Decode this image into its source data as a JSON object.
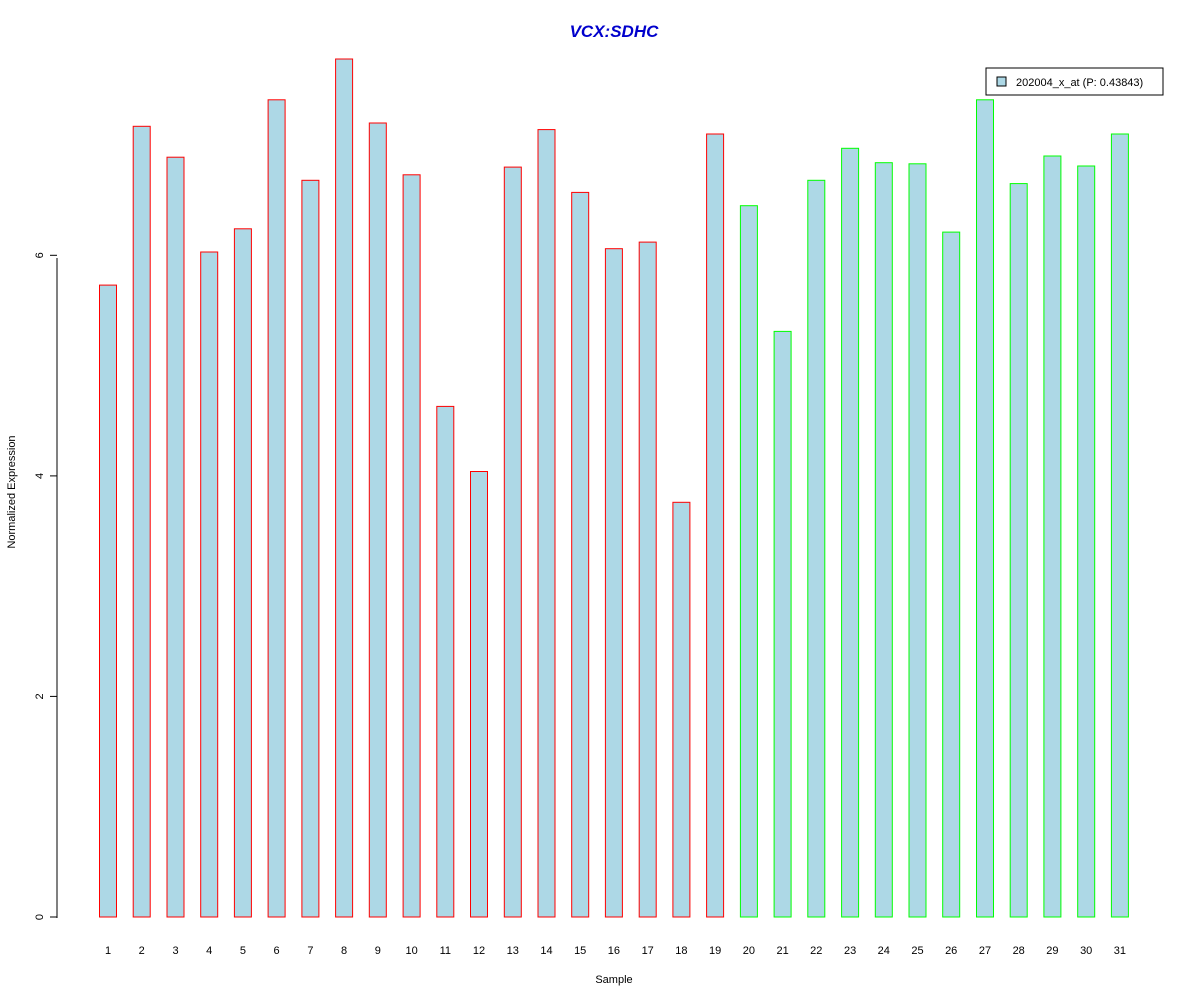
{
  "chart_data": {
    "type": "bar",
    "title": "VCX:SDHC",
    "xlabel": "Sample",
    "ylabel": "Normalized Expression",
    "categories": [
      "1",
      "2",
      "3",
      "4",
      "5",
      "6",
      "7",
      "8",
      "9",
      "10",
      "11",
      "12",
      "13",
      "14",
      "15",
      "16",
      "17",
      "18",
      "19",
      "20",
      "21",
      "22",
      "23",
      "24",
      "25",
      "26",
      "27",
      "28",
      "29",
      "30",
      "31"
    ],
    "values": [
      5.73,
      7.17,
      6.89,
      6.03,
      6.24,
      7.41,
      6.68,
      7.78,
      7.2,
      6.73,
      4.63,
      4.04,
      6.8,
      7.14,
      6.57,
      6.06,
      6.12,
      3.76,
      7.1,
      6.45,
      5.31,
      6.68,
      6.97,
      6.84,
      6.83,
      6.21,
      7.41,
      6.65,
      6.9,
      6.81,
      7.1
    ],
    "groups": [
      "red",
      "red",
      "red",
      "red",
      "red",
      "red",
      "red",
      "red",
      "red",
      "red",
      "red",
      "red",
      "red",
      "red",
      "red",
      "red",
      "red",
      "red",
      "red",
      "green",
      "green",
      "green",
      "green",
      "green",
      "green",
      "green",
      "green",
      "green",
      "green",
      "green",
      "green"
    ],
    "yticks": [
      0,
      2,
      4,
      6
    ],
    "ylim": [
      0,
      7.78
    ],
    "grid": false,
    "legend": {
      "placement": "top-right",
      "entries": [
        {
          "label": "202004_x_at (P: 0.43843)",
          "fill": "#add8e6"
        }
      ]
    },
    "colors": {
      "bar_fill": "#add8e6",
      "border_red": "#ff0000",
      "border_green": "#00ff00",
      "title": "#0000cc"
    }
  }
}
